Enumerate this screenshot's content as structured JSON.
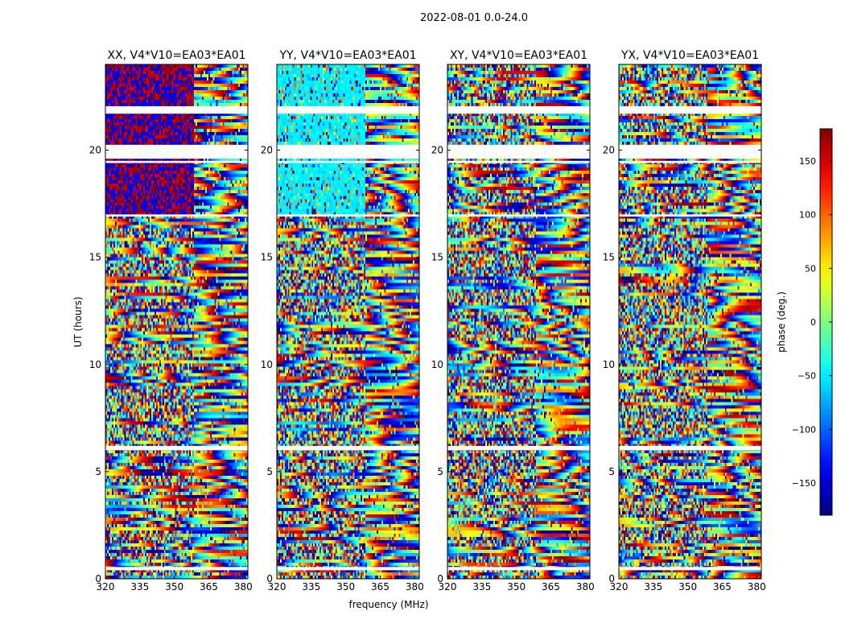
{
  "chart_data": {
    "type": "heatmap",
    "suptitle": "2022-08-01 0.0-24.0",
    "xlabel": "frequency (MHz)",
    "ylabel": "UT (hours)",
    "xlim": [
      320,
      382
    ],
    "ylim": [
      0,
      24
    ],
    "xticks": [
      320,
      335,
      350,
      365,
      380
    ],
    "yticks": [
      0,
      5,
      10,
      15,
      20
    ],
    "colormap": "jet",
    "colorbar": {
      "label": "phase (deg.)",
      "range": [
        -180,
        180
      ],
      "ticks": [
        -150,
        -100,
        -50,
        0,
        50,
        100,
        150
      ],
      "tick_labels": [
        "−150",
        "−100",
        "−50",
        "0",
        "50",
        "100",
        "150"
      ]
    },
    "blank_ut_bands_hours": [
      [
        21.7,
        22.05
      ],
      [
        19.6,
        20.25
      ],
      [
        19.4,
        19.5
      ],
      [
        16.9,
        17.0
      ],
      [
        6.0,
        6.2
      ],
      [
        0.4,
        0.55
      ]
    ],
    "panels": [
      {
        "title": "XX, V4*V10=EA03*EA01"
      },
      {
        "title": "YY, V4*V10=EA03*EA01"
      },
      {
        "title": "XY, V4*V10=EA03*EA01"
      },
      {
        "title": "YX, V4*V10=EA03*EA01"
      }
    ]
  }
}
